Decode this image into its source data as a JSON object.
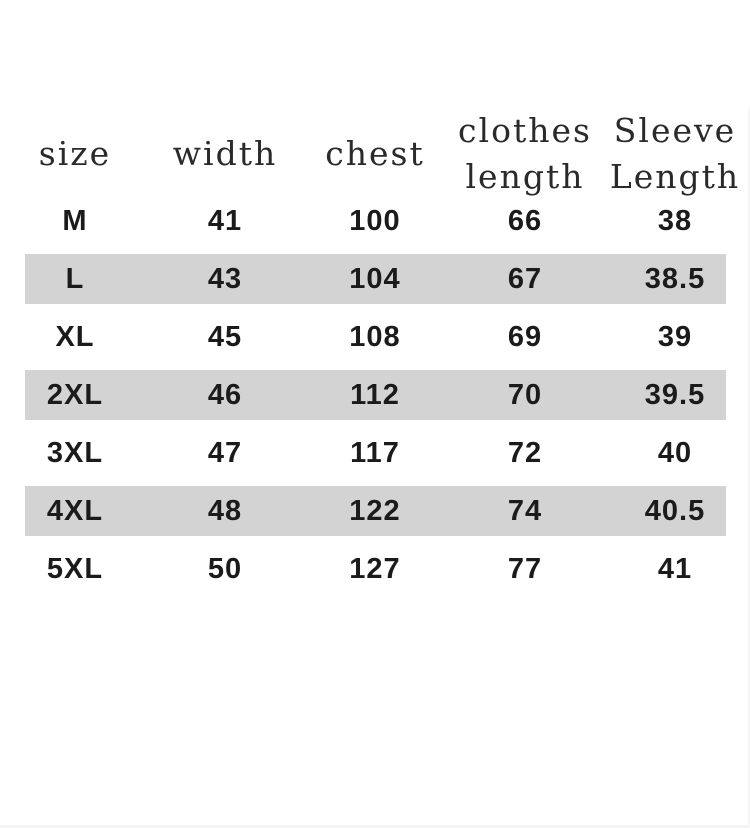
{
  "canvas": {
    "background_color": "#ffffff",
    "stripe_color": "#d3d3d3",
    "header_text_color": "#2a2a2a",
    "data_text_color": "#1b1b1b"
  },
  "size_chart": {
    "headers": [
      {
        "line1": "size",
        "line2": ""
      },
      {
        "line1": "width",
        "line2": ""
      },
      {
        "line1": "chest",
        "line2": ""
      },
      {
        "line1": "clothes",
        "line2": "length"
      },
      {
        "line1": "Sleeve",
        "line2": "Length"
      }
    ],
    "rows": [
      {
        "cells": [
          "M",
          "41",
          "100",
          "66",
          "38"
        ]
      },
      {
        "cells": [
          "L",
          "43",
          "104",
          "67",
          "38.5"
        ]
      },
      {
        "cells": [
          "XL",
          "45",
          "108",
          "69",
          "39"
        ]
      },
      {
        "cells": [
          "2XL",
          "46",
          "112",
          "70",
          "39.5"
        ]
      },
      {
        "cells": [
          "3XL",
          "47",
          "117",
          "72",
          "40"
        ]
      },
      {
        "cells": [
          "4XL",
          "48",
          "122",
          "74",
          "40.5"
        ]
      },
      {
        "cells": [
          "5XL",
          "50",
          "127",
          "77",
          "41"
        ]
      }
    ]
  },
  "chart_data": {
    "type": "table",
    "columns": [
      "size",
      "width",
      "chest",
      "clothes length",
      "Sleeve Length"
    ],
    "rows": [
      [
        "M",
        41,
        100,
        66,
        38
      ],
      [
        "L",
        43,
        104,
        67,
        38.5
      ],
      [
        "XL",
        45,
        108,
        69,
        39
      ],
      [
        "2XL",
        46,
        112,
        70,
        39.5
      ],
      [
        "3XL",
        47,
        117,
        72,
        40
      ],
      [
        "4XL",
        48,
        122,
        74,
        40.5
      ],
      [
        "5XL",
        50,
        127,
        77,
        41
      ]
    ],
    "layout": {
      "striped_rows": [
        "L",
        "2XL",
        "4XL"
      ],
      "stripe_color": "#d3d3d3",
      "grid": "off"
    }
  }
}
